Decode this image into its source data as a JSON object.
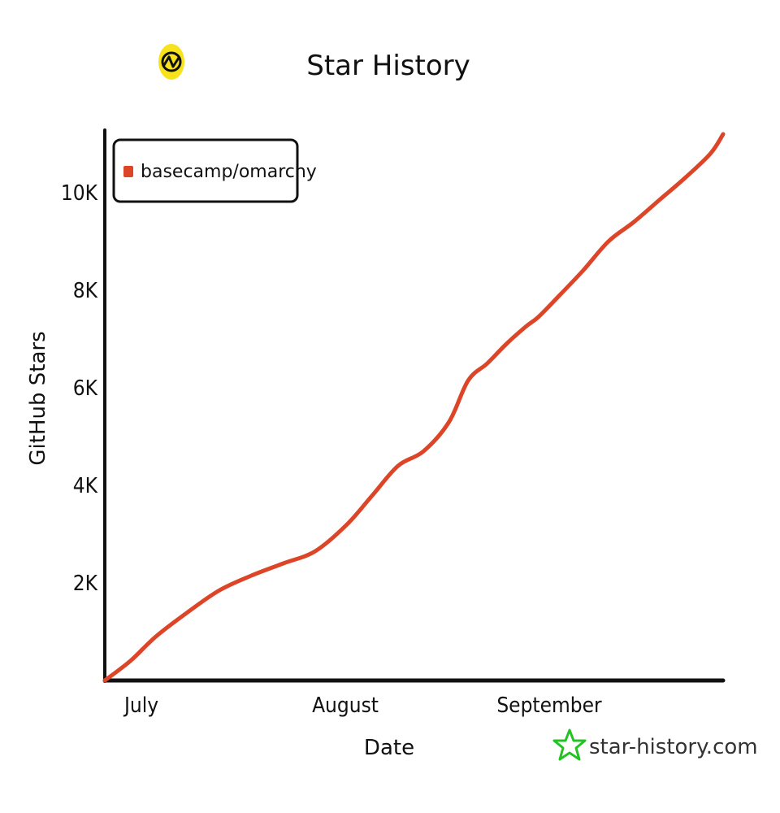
{
  "colors": {
    "series": "#dd4528",
    "axis": "#111111",
    "logo_yellow": "#f7e21b",
    "watermark_star": "#22c322"
  },
  "icons": {
    "logo": "star-history-logo-icon",
    "watermark": "star-outline-icon"
  },
  "watermark": {
    "text": "star-history.com"
  },
  "chart_data": {
    "type": "line",
    "title": "Star History",
    "xlabel": "Date",
    "ylabel": "GitHub Stars",
    "x_tick_labels": [
      "July",
      "August",
      "September"
    ],
    "y_tick_labels": [
      "2K",
      "4K",
      "6K",
      "8K",
      "10K"
    ],
    "y_ticks": [
      2000,
      4000,
      6000,
      8000,
      10000
    ],
    "ylim": [
      0,
      11300
    ],
    "xlim": [
      "2025-06-27",
      "2025-10-02"
    ],
    "x_ticks": [
      "2025-07-01",
      "2025-08-01",
      "2025-09-01"
    ],
    "grid": false,
    "legend": "top-left",
    "series": [
      {
        "name": "basecamp/omarchy",
        "x": [
          "2025-06-27",
          "2025-07-01",
          "2025-07-05",
          "2025-07-10",
          "2025-07-15",
          "2025-07-20",
          "2025-07-25",
          "2025-07-30",
          "2025-08-04",
          "2025-08-08",
          "2025-08-12",
          "2025-08-16",
          "2025-08-20",
          "2025-08-23",
          "2025-08-26",
          "2025-08-29",
          "2025-09-01",
          "2025-09-03",
          "2025-09-06",
          "2025-09-10",
          "2025-09-14",
          "2025-09-18",
          "2025-09-22",
          "2025-09-26",
          "2025-09-30",
          "2025-10-02"
        ],
        "values": [
          0,
          400,
          900,
          1400,
          1850,
          2150,
          2400,
          2650,
          3200,
          3800,
          4400,
          4700,
          5300,
          6150,
          6500,
          6900,
          7250,
          7450,
          7850,
          8400,
          9000,
          9400,
          9850,
          10300,
          10800,
          11200
        ]
      }
    ]
  }
}
